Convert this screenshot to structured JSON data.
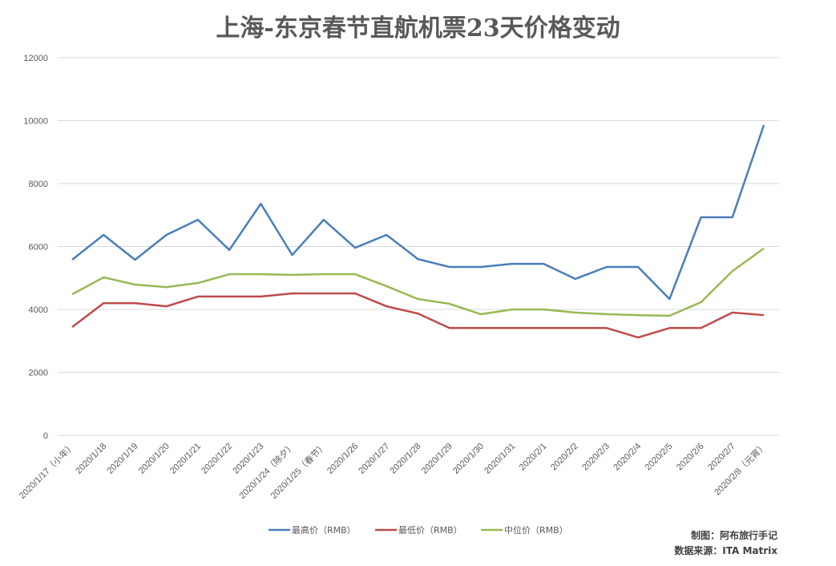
{
  "chart_data": {
    "type": "line",
    "title": "上海-东京春节直航机票23天价格变动",
    "xlabel": "",
    "ylabel": "",
    "ylim": [
      0,
      12000
    ],
    "yticks": [
      0,
      2000,
      4000,
      6000,
      8000,
      10000,
      12000
    ],
    "grid": true,
    "legend_position": "bottom",
    "categories": [
      "2020/1/17（小年）",
      "2020/1/18",
      "2020/1/19",
      "2020/1/20",
      "2020/1/21",
      "2020/1/22",
      "2020/1/23",
      "2020/1/24（除夕）",
      "2020/1/25（春节）",
      "2020/1/26",
      "2020/1/27",
      "2020/1/28",
      "2020/1/29",
      "2020/1/30",
      "2020/1/31",
      "2020/2/1",
      "2020/2/2",
      "2020/2/3",
      "2020/2/4",
      "2020/2/5",
      "2020/2/6",
      "2020/2/7",
      "2020/2/8（元宵）"
    ],
    "series": [
      {
        "name": "最高价（RMB）",
        "color": "#4a7ebb",
        "values": [
          5580,
          6370,
          5580,
          6370,
          6850,
          5890,
          7360,
          5730,
          6850,
          5960,
          6370,
          5600,
          5350,
          5350,
          5450,
          5450,
          4970,
          5350,
          5350,
          4330,
          6930,
          6930,
          9860
        ]
      },
      {
        "name": "最低价（RMB）",
        "color": "#be4b48",
        "values": [
          3440,
          4200,
          4200,
          4100,
          4410,
          4410,
          4410,
          4510,
          4510,
          4510,
          4100,
          3870,
          3410,
          3410,
          3410,
          3410,
          3410,
          3410,
          3110,
          3410,
          3410,
          3900,
          3820
        ]
      },
      {
        "name": "中位价（RMB）",
        "color": "#98b954",
        "values": [
          4480,
          5020,
          4790,
          4710,
          4840,
          5120,
          5120,
          5100,
          5120,
          5120,
          4740,
          4330,
          4180,
          3850,
          4000,
          4000,
          3900,
          3850,
          3820,
          3800,
          4230,
          5220,
          5940
        ]
      }
    ],
    "annotations": [
      "制图：阿布旅行手记",
      "数据来源：ITA Matrix"
    ]
  }
}
